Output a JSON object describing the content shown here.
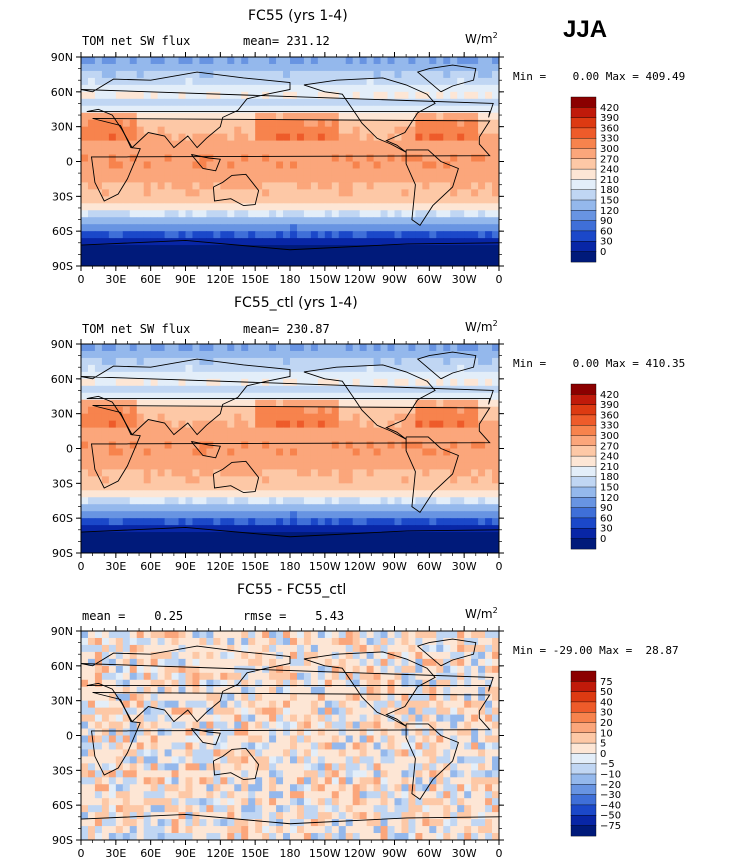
{
  "season": "JJA",
  "units_text": "W/m",
  "units_sup": "2",
  "x_ticks": [
    "0",
    "30E",
    "60E",
    "90E",
    "120E",
    "150E",
    "180",
    "150W",
    "120W",
    "90W",
    "60W",
    "30W",
    "0"
  ],
  "y_ticks": [
    "90N",
    "60N",
    "30N",
    "0",
    "30S",
    "60S",
    "90S"
  ],
  "chart_data": [
    {
      "type": "heatmap",
      "title": "FC55 (yrs 1-4)",
      "subtitle_left": "TOM net SW flux",
      "subtitle_mid": "mean= 231.12",
      "min_label": "Min =",
      "min_value": "0.00",
      "max_label": "Max =",
      "max_value": "409.49",
      "colorbar_levels": [
        "420",
        "390",
        "360",
        "330",
        "300",
        "270",
        "240",
        "210",
        "180",
        "150",
        "120",
        "90",
        "60",
        "30",
        "0"
      ],
      "colorbar_colors": [
        "#8b0000",
        "#c01a0a",
        "#dd3a12",
        "#ee5b2a",
        "#f7834d",
        "#fba67b",
        "#fdc8a6",
        "#fde6d5",
        "#e3eef9",
        "#c0d6f3",
        "#94b8ec",
        "#6894e2",
        "#3f6fd8",
        "#1b48c9",
        "#0826a6",
        "#001a7a"
      ],
      "xlim": [
        0,
        360
      ],
      "ylim": [
        -90,
        90
      ]
    },
    {
      "type": "heatmap",
      "title": "FC55_ctl (yrs 1-4)",
      "subtitle_left": "TOM net SW flux",
      "subtitle_mid": "mean= 230.87",
      "min_label": "Min =",
      "min_value": "0.00",
      "max_label": "Max =",
      "max_value": "410.35",
      "colorbar_levels": [
        "420",
        "390",
        "360",
        "330",
        "300",
        "270",
        "240",
        "210",
        "180",
        "150",
        "120",
        "90",
        "60",
        "30",
        "0"
      ],
      "colorbar_colors": [
        "#8b0000",
        "#c01a0a",
        "#dd3a12",
        "#ee5b2a",
        "#f7834d",
        "#fba67b",
        "#fdc8a6",
        "#fde6d5",
        "#e3eef9",
        "#c0d6f3",
        "#94b8ec",
        "#6894e2",
        "#3f6fd8",
        "#1b48c9",
        "#0826a6",
        "#001a7a"
      ],
      "xlim": [
        0,
        360
      ],
      "ylim": [
        -90,
        90
      ]
    },
    {
      "type": "heatmap",
      "title": "FC55 - FC55_ctl",
      "subtitle_left": "mean =    0.25",
      "subtitle_mid": "rmse =    5.43",
      "min_label": "Min =",
      "min_value": "-29.00",
      "max_label": "Max =",
      "max_value": "28.87",
      "colorbar_levels": [
        "75",
        "50",
        "40",
        "30",
        "20",
        "10",
        "5",
        "0",
        "−5",
        "−10",
        "−20",
        "−30",
        "−40",
        "−50",
        "−75"
      ],
      "colorbar_colors": [
        "#8b0000",
        "#c01a0a",
        "#dd3a12",
        "#ee5b2a",
        "#f7834d",
        "#fba67b",
        "#fdc8a6",
        "#fde6d5",
        "#e3eef9",
        "#c0d6f3",
        "#94b8ec",
        "#6894e2",
        "#3f6fd8",
        "#1b48c9",
        "#0826a6",
        "#001a7a"
      ],
      "xlim": [
        0,
        360
      ],
      "ylim": [
        -90,
        90
      ]
    }
  ]
}
